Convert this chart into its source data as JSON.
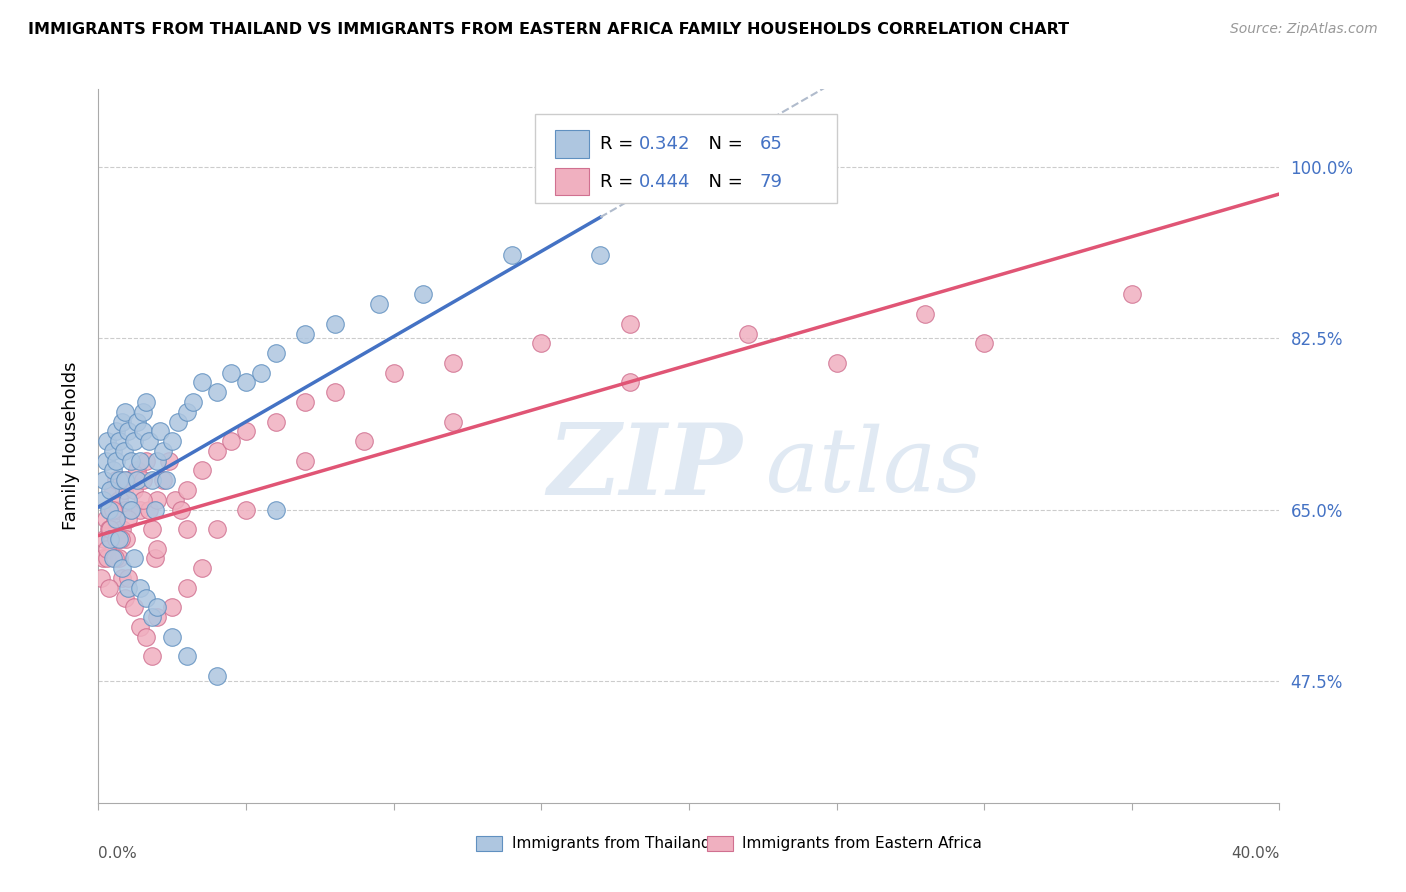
{
  "title": "IMMIGRANTS FROM THAILAND VS IMMIGRANTS FROM EASTERN AFRICA FAMILY HOUSEHOLDS CORRELATION CHART",
  "source": "Source: ZipAtlas.com",
  "ylabel_label": "Family Households",
  "legend_thailand": "Immigrants from Thailand",
  "legend_eastern_africa": "Immigrants from Eastern Africa",
  "R_thailand": 0.342,
  "N_thailand": 65,
  "R_eastern_africa": 0.444,
  "N_eastern_africa": 79,
  "color_thailand_fill": "#aec6e0",
  "color_thailand_edge": "#6090c0",
  "color_eastern_africa_fill": "#f0b0c0",
  "color_eastern_africa_edge": "#d07090",
  "color_trend_thailand": "#4472c4",
  "color_trend_dashed": "#b0bbcc",
  "color_trend_eastern_africa": "#e05575",
  "color_text_blue": "#4472c4",
  "color_grid": "#cccccc",
  "xlim": [
    0.0,
    40.0
  ],
  "ylim": [
    35.0,
    108.0
  ],
  "yticks": [
    47.5,
    65.0,
    82.5,
    100.0
  ],
  "watermark": "ZIPAtlas",
  "background_color": "#ffffff",
  "thailand_x": [
    0.15,
    0.2,
    0.25,
    0.3,
    0.35,
    0.4,
    0.5,
    0.5,
    0.6,
    0.6,
    0.7,
    0.7,
    0.8,
    0.85,
    0.9,
    0.9,
    1.0,
    1.0,
    1.1,
    1.1,
    1.2,
    1.3,
    1.3,
    1.4,
    1.5,
    1.5,
    1.6,
    1.7,
    1.8,
    1.9,
    2.0,
    2.1,
    2.2,
    2.3,
    2.5,
    2.7,
    3.0,
    3.2,
    3.5,
    4.0,
    4.5,
    5.0,
    5.5,
    6.0,
    7.0,
    8.0,
    9.5,
    11.0,
    14.0,
    17.0,
    0.4,
    0.5,
    0.6,
    0.7,
    0.8,
    1.0,
    1.2,
    1.4,
    1.6,
    1.8,
    2.0,
    2.5,
    3.0,
    4.0,
    6.0
  ],
  "thailand_y": [
    66,
    68,
    70,
    72,
    65,
    67,
    71,
    69,
    73,
    70,
    72,
    68,
    74,
    71,
    75,
    68,
    73,
    66,
    70,
    65,
    72,
    74,
    68,
    70,
    73,
    75,
    76,
    72,
    68,
    65,
    70,
    73,
    71,
    68,
    72,
    74,
    75,
    76,
    78,
    77,
    79,
    78,
    79,
    81,
    83,
    84,
    86,
    87,
    91,
    91,
    62,
    60,
    64,
    62,
    59,
    57,
    60,
    57,
    56,
    54,
    55,
    52,
    50,
    48,
    65
  ],
  "eastern_africa_x": [
    0.1,
    0.15,
    0.2,
    0.25,
    0.3,
    0.35,
    0.4,
    0.45,
    0.5,
    0.55,
    0.6,
    0.65,
    0.7,
    0.75,
    0.8,
    0.85,
    0.9,
    0.95,
    1.0,
    1.1,
    1.2,
    1.3,
    1.4,
    1.5,
    1.6,
    1.7,
    1.8,
    1.9,
    2.0,
    2.2,
    2.4,
    2.6,
    2.8,
    3.0,
    3.5,
    4.0,
    4.5,
    5.0,
    6.0,
    7.0,
    8.0,
    10.0,
    12.0,
    15.0,
    18.0,
    22.0,
    28.0,
    35.0,
    0.3,
    0.4,
    0.5,
    0.6,
    0.7,
    0.8,
    0.9,
    1.0,
    1.2,
    1.4,
    1.6,
    1.8,
    2.0,
    2.5,
    3.0,
    3.5,
    4.0,
    5.0,
    7.0,
    9.0,
    12.0,
    18.0,
    25.0,
    30.0,
    0.35,
    0.55,
    0.75,
    1.0,
    1.5,
    2.0,
    3.0
  ],
  "eastern_africa_y": [
    58,
    60,
    62,
    64,
    60,
    63,
    65,
    62,
    67,
    64,
    68,
    65,
    66,
    68,
    63,
    67,
    65,
    62,
    68,
    65,
    67,
    69,
    65,
    68,
    70,
    65,
    63,
    60,
    66,
    68,
    70,
    66,
    65,
    67,
    69,
    71,
    72,
    73,
    74,
    76,
    77,
    79,
    80,
    82,
    84,
    83,
    85,
    87,
    61,
    63,
    65,
    62,
    60,
    58,
    56,
    58,
    55,
    53,
    52,
    50,
    54,
    55,
    57,
    59,
    63,
    65,
    70,
    72,
    74,
    78,
    80,
    82,
    57,
    60,
    62,
    64,
    66,
    61,
    63
  ]
}
